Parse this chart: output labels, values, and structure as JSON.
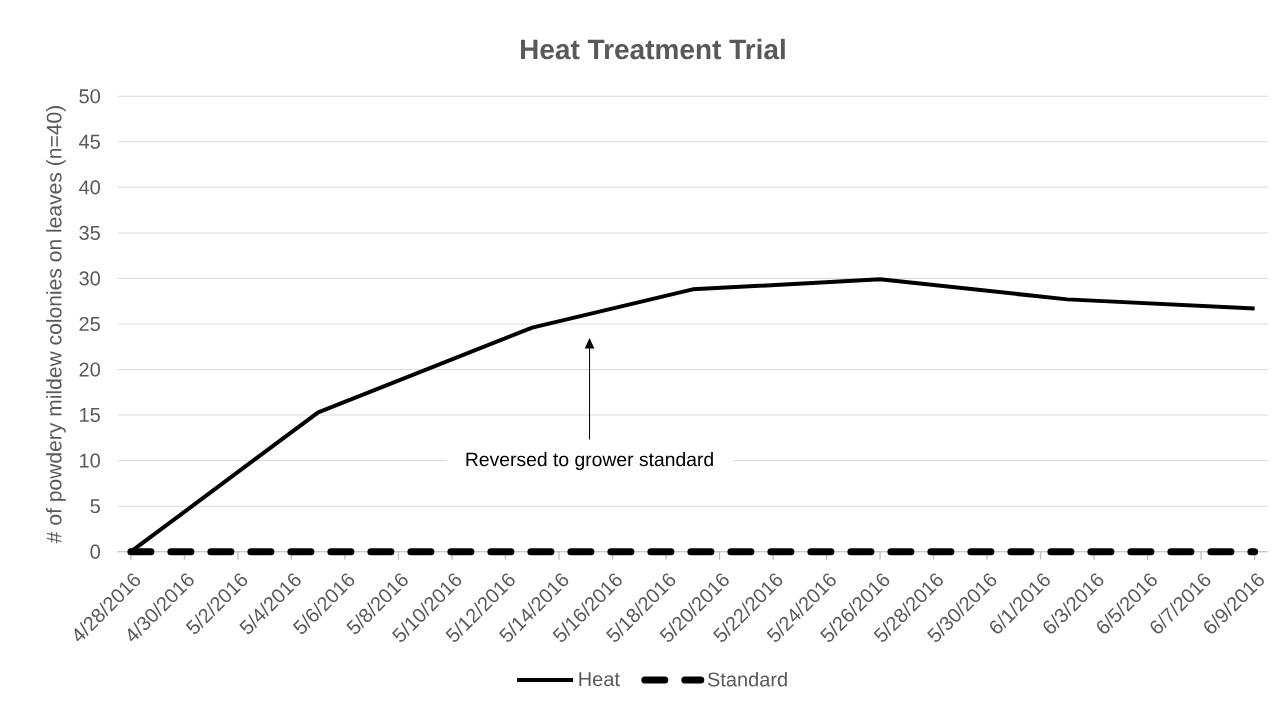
{
  "chart_data": {
    "type": "line",
    "title": "Heat Treatment Trial",
    "ylabel": "# of powdery mildew colonies on leaves (n=40)",
    "x": [
      "2016-04-28",
      "2016-05-05",
      "2016-05-13",
      "2016-05-19",
      "2016-05-26",
      "2016-06-02",
      "2016-06-09"
    ],
    "series": [
      {
        "name": "Heat",
        "color": "#000000",
        "line_style": "solid",
        "values": [
          0,
          15.3,
          24.6,
          28.8,
          29.9,
          27.7,
          26.7
        ]
      },
      {
        "name": "Standard",
        "color": "#000000",
        "line_style": "dashed",
        "values": [
          0,
          0,
          0,
          0,
          0,
          0,
          0
        ]
      }
    ],
    "xlim": [
      "2016-04-27T12:00",
      "2016-06-09T12:00"
    ],
    "xticks": [
      {
        "value": "2016-04-28",
        "label": "4/28/2016"
      },
      {
        "value": "2016-04-30",
        "label": "4/30/2016"
      },
      {
        "value": "2016-05-02",
        "label": "5/2/2016"
      },
      {
        "value": "2016-05-04",
        "label": "5/4/2016"
      },
      {
        "value": "2016-05-06",
        "label": "5/6/2016"
      },
      {
        "value": "2016-05-08",
        "label": "5/8/2016"
      },
      {
        "value": "2016-05-10",
        "label": "5/10/2016"
      },
      {
        "value": "2016-05-12",
        "label": "5/12/2016"
      },
      {
        "value": "2016-05-14",
        "label": "5/14/2016"
      },
      {
        "value": "2016-05-16",
        "label": "5/16/2016"
      },
      {
        "value": "2016-05-18",
        "label": "5/18/2016"
      },
      {
        "value": "2016-05-20",
        "label": "5/20/2016"
      },
      {
        "value": "2016-05-22",
        "label": "5/22/2016"
      },
      {
        "value": "2016-05-24",
        "label": "5/24/2016"
      },
      {
        "value": "2016-05-26",
        "label": "5/26/2016"
      },
      {
        "value": "2016-05-28",
        "label": "5/28/2016"
      },
      {
        "value": "2016-05-30",
        "label": "5/30/2016"
      },
      {
        "value": "2016-06-01",
        "label": "6/1/2016"
      },
      {
        "value": "2016-06-03",
        "label": "6/3/2016"
      },
      {
        "value": "2016-06-05",
        "label": "6/5/2016"
      },
      {
        "value": "2016-06-07",
        "label": "6/7/2016"
      },
      {
        "value": "2016-06-09",
        "label": "6/9/2016"
      }
    ],
    "ylim": [
      0,
      50
    ],
    "yticks": [
      0,
      5,
      10,
      15,
      20,
      25,
      30,
      35,
      40,
      45,
      50
    ],
    "grid": "y",
    "legend": "bottom",
    "marker": "none",
    "annotations": [
      "Reversed to grower standard"
    ]
  }
}
